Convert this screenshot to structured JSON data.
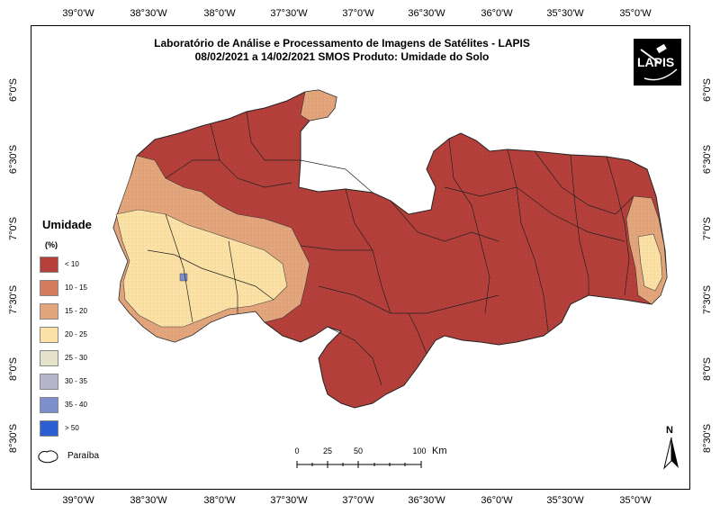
{
  "title": {
    "line1": "Laboratório de Análise e Processamento de Imagens de Satélites - LAPIS",
    "line2": "08/02/2021  a  14/02/2021          SMOS       Produto: Umidade do Solo"
  },
  "logo": {
    "text": "LAPIS"
  },
  "axes": {
    "longitude_ticks": [
      "39°0'W",
      "38°30'W",
      "38°0'W",
      "37°30'W",
      "37°0'W",
      "36°30'W",
      "36°0'W",
      "35°30'W",
      "35°0'W"
    ],
    "latitude_ticks": [
      "6°0'S",
      "6°30'S",
      "7°0'S",
      "7°30'S",
      "8°0'S",
      "8°30'S"
    ]
  },
  "legend": {
    "title": "Umidade",
    "unit": "(%)",
    "classes": [
      {
        "label": "< 10",
        "color": "#b5403b"
      },
      {
        "label": "10 - 15",
        "color": "#d47a5e"
      },
      {
        "label": "15 - 20",
        "color": "#e3a67c"
      },
      {
        "label": "20 - 25",
        "color": "#fbe1a6"
      },
      {
        "label": "25 - 30",
        "color": "#e4e2c8"
      },
      {
        "label": "30 - 35",
        "color": "#b6b5cb"
      },
      {
        "label": "35 - 40",
        "color": "#7d8fcc"
      },
      {
        "label": "> 50",
        "color": "#2c5fd3"
      }
    ],
    "boundary_label": "Paraíba"
  },
  "scale_bar": {
    "ticks": [
      "0",
      "25",
      "50",
      "100"
    ],
    "unit": "Km"
  },
  "north_label": "N"
}
